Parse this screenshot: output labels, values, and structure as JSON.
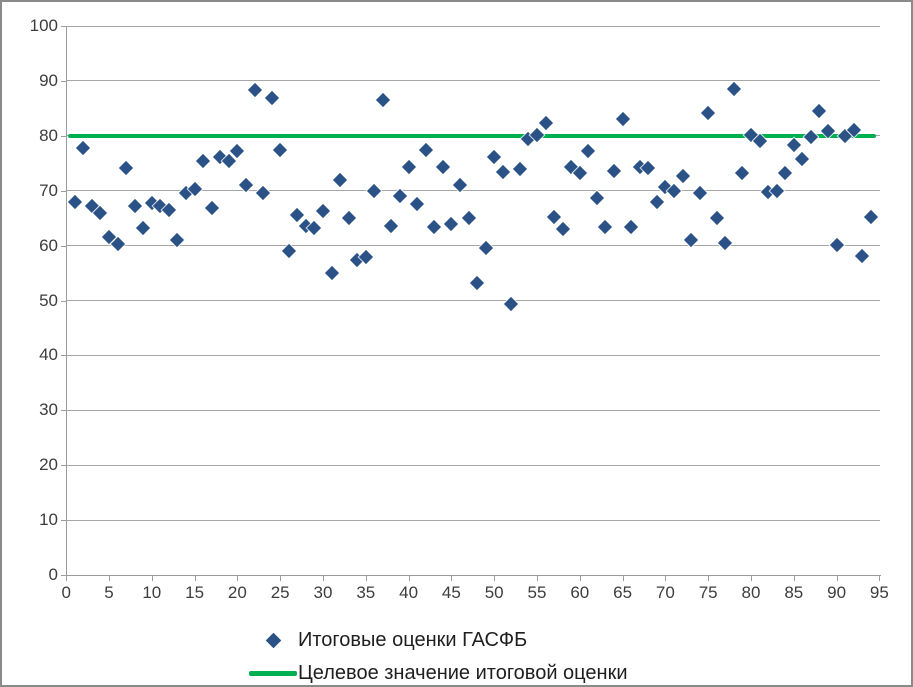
{
  "colors": {
    "marker": "#2b5286",
    "target": "#00b050",
    "grid": "#a6a6a6",
    "axis": "#9b9b9b",
    "tick_text": "#3d3d3d",
    "legend_text": "#1f1f1f",
    "frame_border": "#8a8a8a"
  },
  "legend": {
    "series_label": "Итоговые оценки ГАСФБ",
    "target_label": "Целевое значение итоговой оценки"
  },
  "chart_data": {
    "type": "scatter",
    "title": "",
    "xlabel": "",
    "ylabel": "",
    "xlim": [
      0,
      95
    ],
    "ylim": [
      0,
      100
    ],
    "x_ticks": [
      0,
      5,
      10,
      15,
      20,
      25,
      30,
      35,
      40,
      45,
      50,
      55,
      60,
      65,
      70,
      75,
      80,
      85,
      90,
      95
    ],
    "y_ticks": [
      0,
      10,
      20,
      30,
      40,
      50,
      60,
      70,
      80,
      90,
      100
    ],
    "grid": "horizontal",
    "legend_position": "bottom",
    "target_line": {
      "value": 80,
      "label": "Целевое значение итоговой оценки"
    },
    "series": [
      {
        "name": "Итоговые оценки ГАСФБ",
        "marker": "diamond",
        "points": [
          [
            1,
            68.0
          ],
          [
            2,
            77.7
          ],
          [
            3,
            67.2
          ],
          [
            4,
            65.9
          ],
          [
            5,
            61.5
          ],
          [
            6,
            60.3
          ],
          [
            7,
            74.1
          ],
          [
            8,
            67.2
          ],
          [
            9,
            63.2
          ],
          [
            10,
            67.8
          ],
          [
            11,
            67.3
          ],
          [
            12,
            66.4
          ],
          [
            13,
            61.0
          ],
          [
            14,
            69.6
          ],
          [
            15,
            70.4
          ],
          [
            16,
            75.4
          ],
          [
            17,
            66.9
          ],
          [
            18,
            76.2
          ],
          [
            19,
            75.4
          ],
          [
            20,
            77.2
          ],
          [
            21,
            71.0
          ],
          [
            22,
            88.3
          ],
          [
            23,
            69.5
          ],
          [
            24,
            86.8
          ],
          [
            25,
            77.4
          ],
          [
            26,
            59.0
          ],
          [
            27,
            65.5
          ],
          [
            28,
            63.5
          ],
          [
            29,
            63.2
          ],
          [
            30,
            66.3
          ],
          [
            31,
            55.0
          ],
          [
            32,
            72.0
          ],
          [
            33,
            65.1
          ],
          [
            34,
            57.3
          ],
          [
            35,
            58.0
          ],
          [
            36,
            69.9
          ],
          [
            37,
            86.6
          ],
          [
            38,
            63.5
          ],
          [
            39,
            69.1
          ],
          [
            40,
            74.3
          ],
          [
            41,
            67.6
          ],
          [
            42,
            77.4
          ],
          [
            43,
            63.4
          ],
          [
            44,
            74.4
          ],
          [
            45,
            64.0
          ],
          [
            46,
            71.0
          ],
          [
            47,
            65.0
          ],
          [
            48,
            53.2
          ],
          [
            49,
            59.5
          ],
          [
            50,
            76.2
          ],
          [
            51,
            73.4
          ],
          [
            52,
            49.4
          ],
          [
            53,
            74.0
          ],
          [
            54,
            79.4
          ],
          [
            55,
            80.1
          ],
          [
            56,
            82.3
          ],
          [
            57,
            65.2
          ],
          [
            58,
            63.0
          ],
          [
            59,
            74.4
          ],
          [
            60,
            73.3
          ],
          [
            61,
            77.2
          ],
          [
            62,
            68.7
          ],
          [
            63,
            63.4
          ],
          [
            64,
            73.5
          ],
          [
            65,
            83.1
          ],
          [
            66,
            63.4
          ],
          [
            67,
            74.3
          ],
          [
            68,
            74.1
          ],
          [
            69,
            67.9
          ],
          [
            70,
            70.6
          ],
          [
            71,
            70.0
          ],
          [
            72,
            72.6
          ],
          [
            73,
            61.1
          ],
          [
            74,
            69.5
          ],
          [
            75,
            84.2
          ],
          [
            76,
            65.1
          ],
          [
            77,
            60.4
          ],
          [
            78,
            88.6
          ],
          [
            79,
            73.2
          ],
          [
            80,
            80.2
          ],
          [
            81,
            79.1
          ],
          [
            82,
            69.8
          ],
          [
            83,
            69.9
          ],
          [
            84,
            73.3
          ],
          [
            85,
            78.4
          ],
          [
            86,
            75.7
          ],
          [
            87,
            79.7
          ],
          [
            88,
            84.6
          ],
          [
            89,
            80.9
          ],
          [
            90,
            60.1
          ],
          [
            91,
            79.9
          ],
          [
            92,
            81.0
          ],
          [
            93,
            58.1
          ],
          [
            94,
            65.2
          ]
        ]
      }
    ]
  }
}
